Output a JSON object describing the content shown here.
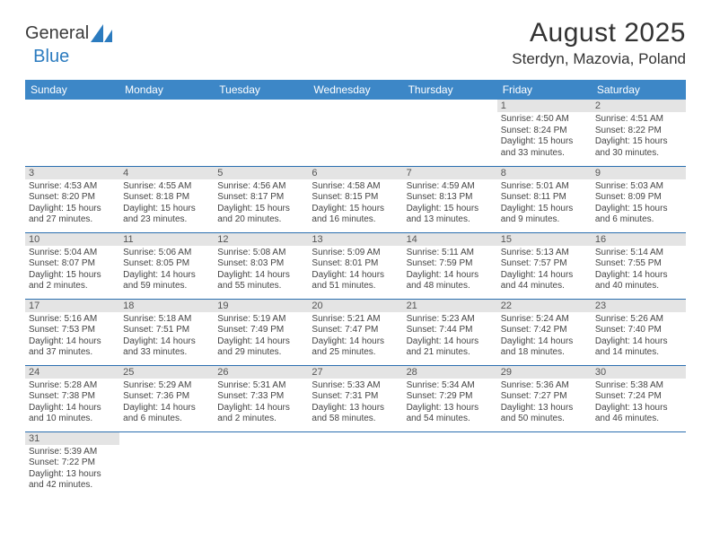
{
  "logo": {
    "text1": "General",
    "text2": "Blue"
  },
  "title": "August 2025",
  "location": "Sterdyn, Mazovia, Poland",
  "colors": {
    "header_bg": "#3d87c7",
    "header_text": "#ffffff",
    "row_divider": "#2b6fb0",
    "daynum_bg": "#e4e4e4",
    "logo_blue": "#2b7bbf",
    "body_text": "#444444",
    "page_bg": "#ffffff"
  },
  "daysOfWeek": [
    "Sunday",
    "Monday",
    "Tuesday",
    "Wednesday",
    "Thursday",
    "Friday",
    "Saturday"
  ],
  "weeks": [
    [
      null,
      null,
      null,
      null,
      null,
      {
        "n": "1",
        "sunrise": "Sunrise: 4:50 AM",
        "sunset": "Sunset: 8:24 PM",
        "day1": "Daylight: 15 hours",
        "day2": "and 33 minutes."
      },
      {
        "n": "2",
        "sunrise": "Sunrise: 4:51 AM",
        "sunset": "Sunset: 8:22 PM",
        "day1": "Daylight: 15 hours",
        "day2": "and 30 minutes."
      }
    ],
    [
      {
        "n": "3",
        "sunrise": "Sunrise: 4:53 AM",
        "sunset": "Sunset: 8:20 PM",
        "day1": "Daylight: 15 hours",
        "day2": "and 27 minutes."
      },
      {
        "n": "4",
        "sunrise": "Sunrise: 4:55 AM",
        "sunset": "Sunset: 8:18 PM",
        "day1": "Daylight: 15 hours",
        "day2": "and 23 minutes."
      },
      {
        "n": "5",
        "sunrise": "Sunrise: 4:56 AM",
        "sunset": "Sunset: 8:17 PM",
        "day1": "Daylight: 15 hours",
        "day2": "and 20 minutes."
      },
      {
        "n": "6",
        "sunrise": "Sunrise: 4:58 AM",
        "sunset": "Sunset: 8:15 PM",
        "day1": "Daylight: 15 hours",
        "day2": "and 16 minutes."
      },
      {
        "n": "7",
        "sunrise": "Sunrise: 4:59 AM",
        "sunset": "Sunset: 8:13 PM",
        "day1": "Daylight: 15 hours",
        "day2": "and 13 minutes."
      },
      {
        "n": "8",
        "sunrise": "Sunrise: 5:01 AM",
        "sunset": "Sunset: 8:11 PM",
        "day1": "Daylight: 15 hours",
        "day2": "and 9 minutes."
      },
      {
        "n": "9",
        "sunrise": "Sunrise: 5:03 AM",
        "sunset": "Sunset: 8:09 PM",
        "day1": "Daylight: 15 hours",
        "day2": "and 6 minutes."
      }
    ],
    [
      {
        "n": "10",
        "sunrise": "Sunrise: 5:04 AM",
        "sunset": "Sunset: 8:07 PM",
        "day1": "Daylight: 15 hours",
        "day2": "and 2 minutes."
      },
      {
        "n": "11",
        "sunrise": "Sunrise: 5:06 AM",
        "sunset": "Sunset: 8:05 PM",
        "day1": "Daylight: 14 hours",
        "day2": "and 59 minutes."
      },
      {
        "n": "12",
        "sunrise": "Sunrise: 5:08 AM",
        "sunset": "Sunset: 8:03 PM",
        "day1": "Daylight: 14 hours",
        "day2": "and 55 minutes."
      },
      {
        "n": "13",
        "sunrise": "Sunrise: 5:09 AM",
        "sunset": "Sunset: 8:01 PM",
        "day1": "Daylight: 14 hours",
        "day2": "and 51 minutes."
      },
      {
        "n": "14",
        "sunrise": "Sunrise: 5:11 AM",
        "sunset": "Sunset: 7:59 PM",
        "day1": "Daylight: 14 hours",
        "day2": "and 48 minutes."
      },
      {
        "n": "15",
        "sunrise": "Sunrise: 5:13 AM",
        "sunset": "Sunset: 7:57 PM",
        "day1": "Daylight: 14 hours",
        "day2": "and 44 minutes."
      },
      {
        "n": "16",
        "sunrise": "Sunrise: 5:14 AM",
        "sunset": "Sunset: 7:55 PM",
        "day1": "Daylight: 14 hours",
        "day2": "and 40 minutes."
      }
    ],
    [
      {
        "n": "17",
        "sunrise": "Sunrise: 5:16 AM",
        "sunset": "Sunset: 7:53 PM",
        "day1": "Daylight: 14 hours",
        "day2": "and 37 minutes."
      },
      {
        "n": "18",
        "sunrise": "Sunrise: 5:18 AM",
        "sunset": "Sunset: 7:51 PM",
        "day1": "Daylight: 14 hours",
        "day2": "and 33 minutes."
      },
      {
        "n": "19",
        "sunrise": "Sunrise: 5:19 AM",
        "sunset": "Sunset: 7:49 PM",
        "day1": "Daylight: 14 hours",
        "day2": "and 29 minutes."
      },
      {
        "n": "20",
        "sunrise": "Sunrise: 5:21 AM",
        "sunset": "Sunset: 7:47 PM",
        "day1": "Daylight: 14 hours",
        "day2": "and 25 minutes."
      },
      {
        "n": "21",
        "sunrise": "Sunrise: 5:23 AM",
        "sunset": "Sunset: 7:44 PM",
        "day1": "Daylight: 14 hours",
        "day2": "and 21 minutes."
      },
      {
        "n": "22",
        "sunrise": "Sunrise: 5:24 AM",
        "sunset": "Sunset: 7:42 PM",
        "day1": "Daylight: 14 hours",
        "day2": "and 18 minutes."
      },
      {
        "n": "23",
        "sunrise": "Sunrise: 5:26 AM",
        "sunset": "Sunset: 7:40 PM",
        "day1": "Daylight: 14 hours",
        "day2": "and 14 minutes."
      }
    ],
    [
      {
        "n": "24",
        "sunrise": "Sunrise: 5:28 AM",
        "sunset": "Sunset: 7:38 PM",
        "day1": "Daylight: 14 hours",
        "day2": "and 10 minutes."
      },
      {
        "n": "25",
        "sunrise": "Sunrise: 5:29 AM",
        "sunset": "Sunset: 7:36 PM",
        "day1": "Daylight: 14 hours",
        "day2": "and 6 minutes."
      },
      {
        "n": "26",
        "sunrise": "Sunrise: 5:31 AM",
        "sunset": "Sunset: 7:33 PM",
        "day1": "Daylight: 14 hours",
        "day2": "and 2 minutes."
      },
      {
        "n": "27",
        "sunrise": "Sunrise: 5:33 AM",
        "sunset": "Sunset: 7:31 PM",
        "day1": "Daylight: 13 hours",
        "day2": "and 58 minutes."
      },
      {
        "n": "28",
        "sunrise": "Sunrise: 5:34 AM",
        "sunset": "Sunset: 7:29 PM",
        "day1": "Daylight: 13 hours",
        "day2": "and 54 minutes."
      },
      {
        "n": "29",
        "sunrise": "Sunrise: 5:36 AM",
        "sunset": "Sunset: 7:27 PM",
        "day1": "Daylight: 13 hours",
        "day2": "and 50 minutes."
      },
      {
        "n": "30",
        "sunrise": "Sunrise: 5:38 AM",
        "sunset": "Sunset: 7:24 PM",
        "day1": "Daylight: 13 hours",
        "day2": "and 46 minutes."
      }
    ],
    [
      {
        "n": "31",
        "sunrise": "Sunrise: 5:39 AM",
        "sunset": "Sunset: 7:22 PM",
        "day1": "Daylight: 13 hours",
        "day2": "and 42 minutes."
      },
      null,
      null,
      null,
      null,
      null,
      null
    ]
  ]
}
